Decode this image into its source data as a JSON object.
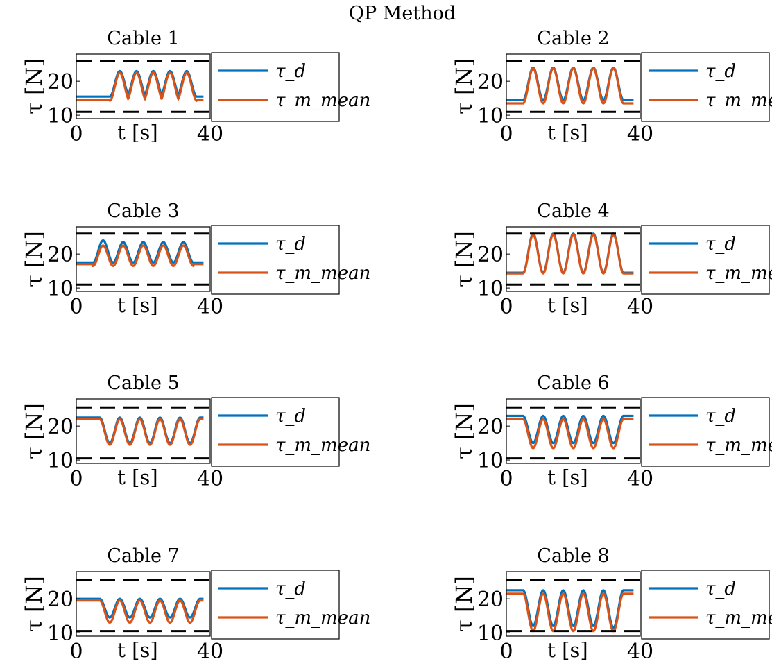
{
  "figure_title": "QP Method",
  "colors": {
    "tau_d": "#0072BD",
    "tau_m": "#D95319",
    "limit": "#000000",
    "frame": "#000000"
  },
  "chart_data": [
    {
      "type": "line",
      "title": "Cable 1",
      "xlabel": "t [s]",
      "ylabel": "τ [N]",
      "xlim": [
        0,
        40
      ],
      "ylim": [
        9,
        28
      ],
      "xticks": [
        0,
        40
      ],
      "yticks": [
        10,
        20
      ],
      "limits": {
        "lower": 11,
        "upper": 26
      },
      "series": [
        {
          "name": "τ_d",
          "base": 15.5,
          "peaks": [
            [
              13,
              23
            ],
            [
              18,
              23
            ],
            [
              23,
              23
            ],
            [
              28,
              23
            ],
            [
              33,
              23
            ]
          ],
          "trough": 15.5
        },
        {
          "name": "τ_m_mean",
          "base": 14.5,
          "peaks": [
            [
              13,
              22.5
            ],
            [
              18,
              22.5
            ],
            [
              23,
              22.5
            ],
            [
              28,
              22.5
            ],
            [
              33,
              22.5
            ]
          ],
          "trough": 14.3
        }
      ],
      "legend": {
        "placement": "right-outside"
      }
    },
    {
      "type": "line",
      "title": "Cable 2",
      "xlabel": "t [s]",
      "ylabel": "τ [N]",
      "xlim": [
        0,
        40
      ],
      "ylim": [
        9,
        28
      ],
      "xticks": [
        0,
        40
      ],
      "yticks": [
        10,
        20
      ],
      "limits": {
        "lower": 11,
        "upper": 26
      },
      "series": [
        {
          "name": "τ_d",
          "base": 14.5,
          "peaks": [
            [
              8,
              24
            ],
            [
              14,
              24
            ],
            [
              20,
              24
            ],
            [
              26,
              24
            ],
            [
              32,
              24
            ]
          ],
          "trough": 14.5
        },
        {
          "name": "τ_m_mean",
          "base": 13.5,
          "peaks": [
            [
              8,
              23.8
            ],
            [
              14,
              23.8
            ],
            [
              20,
              23.8
            ],
            [
              26,
              23.8
            ],
            [
              32,
              23.8
            ]
          ],
          "trough": 13.5
        }
      ],
      "legend": {
        "placement": "right-outside"
      }
    },
    {
      "type": "line",
      "title": "Cable 3",
      "xlabel": "t [s]",
      "ylabel": "τ [N]",
      "xlim": [
        0,
        40
      ],
      "ylim": [
        9,
        28
      ],
      "xticks": [
        0,
        40
      ],
      "yticks": [
        10,
        20
      ],
      "limits": {
        "lower": 11,
        "upper": 26
      },
      "series": [
        {
          "name": "τ_d",
          "base": 17.5,
          "peaks": [
            [
              8,
              24
            ],
            [
              14,
              23.5
            ],
            [
              20,
              23.5
            ],
            [
              26,
              23.5
            ],
            [
              32,
              23.5
            ]
          ],
          "trough": 17.5
        },
        {
          "name": "τ_m_mean",
          "base": 17,
          "peaks": [
            [
              8,
              22.5
            ],
            [
              14,
              22.5
            ],
            [
              20,
              22.5
            ],
            [
              26,
              22.5
            ],
            [
              32,
              22.5
            ]
          ],
          "trough": 16.5
        }
      ],
      "legend": {
        "placement": "right-outside"
      }
    },
    {
      "type": "line",
      "title": "Cable 4",
      "xlabel": "t [s]",
      "ylabel": "τ [N]",
      "xlim": [
        0,
        40
      ],
      "ylim": [
        9,
        28
      ],
      "xticks": [
        0,
        40
      ],
      "yticks": [
        10,
        20
      ],
      "limits": {
        "lower": 11,
        "upper": 26
      },
      "series": [
        {
          "name": "τ_d",
          "base": 14.5,
          "peaks": [
            [
              8,
              26
            ],
            [
              14,
              26
            ],
            [
              20,
              26
            ],
            [
              26,
              26
            ],
            [
              32,
              26
            ]
          ],
          "trough": 14.5
        },
        {
          "name": "τ_m_mean",
          "base": 14.3,
          "peaks": [
            [
              8,
              25.7
            ],
            [
              14,
              25.7
            ],
            [
              20,
              25.7
            ],
            [
              26,
              25.7
            ],
            [
              32,
              25.7
            ]
          ],
          "trough": 14.3
        }
      ],
      "legend": {
        "placement": "right-outside"
      }
    },
    {
      "type": "line",
      "title": "Cable 5",
      "xlabel": "t [s]",
      "ylabel": "τ [N]",
      "xlim": [
        0,
        40
      ],
      "ylim": [
        9,
        28
      ],
      "xticks": [
        0,
        40
      ],
      "yticks": [
        10,
        20
      ],
      "limits": {
        "lower": 10.5,
        "upper": 25.5
      },
      "series": [
        {
          "name": "τ_d",
          "base": 22.5,
          "dips": [
            [
              10,
              15
            ],
            [
              16,
              15
            ],
            [
              22,
              15
            ],
            [
              28,
              15
            ],
            [
              34,
              15
            ]
          ]
        },
        {
          "name": "τ_m_mean",
          "base": 22,
          "dips": [
            [
              10,
              14.5
            ],
            [
              16,
              14.5
            ],
            [
              22,
              14.5
            ],
            [
              28,
              14.5
            ],
            [
              34,
              14.5
            ]
          ]
        }
      ],
      "legend": {
        "placement": "right-outside"
      }
    },
    {
      "type": "line",
      "title": "Cable 6",
      "xlabel": "t [s]",
      "ylabel": "τ [N]",
      "xlim": [
        0,
        40
      ],
      "ylim": [
        9,
        28
      ],
      "xticks": [
        0,
        40
      ],
      "yticks": [
        10,
        20
      ],
      "limits": {
        "lower": 10.5,
        "upper": 25.5
      },
      "series": [
        {
          "name": "τ_d",
          "base": 23,
          "dips": [
            [
              8,
              15
            ],
            [
              14,
              15
            ],
            [
              20,
              15
            ],
            [
              26,
              15
            ],
            [
              32,
              15
            ]
          ]
        },
        {
          "name": "τ_m_mean",
          "base": 22,
          "dips": [
            [
              8,
              13.5
            ],
            [
              14,
              13.5
            ],
            [
              20,
              13.5
            ],
            [
              26,
              13.5
            ],
            [
              32,
              13.5
            ]
          ]
        }
      ],
      "legend": {
        "placement": "right-outside"
      }
    },
    {
      "type": "line",
      "title": "Cable 7",
      "xlabel": "t [s]",
      "ylabel": "τ [N]",
      "xlim": [
        0,
        40
      ],
      "ylim": [
        9,
        28
      ],
      "xticks": [
        0,
        40
      ],
      "yticks": [
        10,
        20
      ],
      "limits": {
        "lower": 10.5,
        "upper": 25.5
      },
      "series": [
        {
          "name": "τ_d",
          "base": 20,
          "dips": [
            [
              10,
              14.5
            ],
            [
              16,
              14.5
            ],
            [
              22,
              14.5
            ],
            [
              28,
              14.5
            ],
            [
              34,
              14.5
            ]
          ]
        },
        {
          "name": "τ_m_mean",
          "base": 19.5,
          "dips": [
            [
              10,
              13
            ],
            [
              16,
              13
            ],
            [
              22,
              13
            ],
            [
              28,
              13
            ],
            [
              34,
              13
            ]
          ]
        }
      ],
      "legend": {
        "placement": "right-outside"
      }
    },
    {
      "type": "line",
      "title": "Cable 8",
      "xlabel": "t [s]",
      "ylabel": "τ [N]",
      "xlim": [
        0,
        40
      ],
      "ylim": [
        9,
        28
      ],
      "xticks": [
        0,
        40
      ],
      "yticks": [
        10,
        20
      ],
      "limits": {
        "lower": 10.5,
        "upper": 25.5
      },
      "series": [
        {
          "name": "τ_d",
          "base": 22.5,
          "dips": [
            [
              8,
              12
            ],
            [
              14,
              12
            ],
            [
              20,
              12
            ],
            [
              26,
              12
            ],
            [
              32,
              11.5
            ]
          ]
        },
        {
          "name": "τ_m_mean",
          "base": 21.5,
          "dips": [
            [
              8,
              10.5
            ],
            [
              14,
              10.5
            ],
            [
              20,
              10.5
            ],
            [
              26,
              10.5
            ],
            [
              32,
              10.5
            ]
          ]
        }
      ],
      "legend": {
        "placement": "right-outside"
      }
    }
  ]
}
